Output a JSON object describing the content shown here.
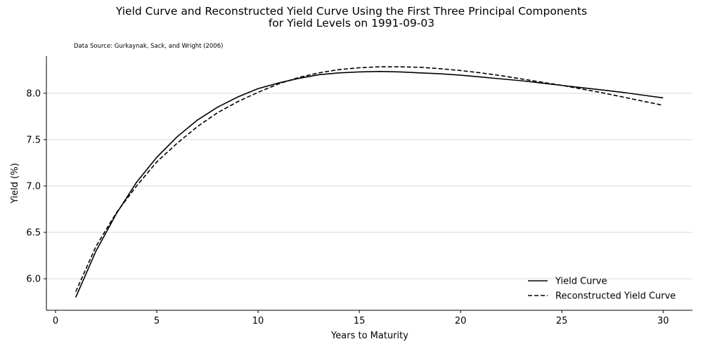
{
  "title_line1": "Yield Curve and Reconstructed Yield Curve Using the First Three Principal Components",
  "title_line2": "for Yield Levels on 1991-09-03",
  "source_note": "Data Source: Gurkaynak, Sack, and Wright (2006)",
  "chart_data": {
    "type": "line",
    "xlabel": "Years to Maturity",
    "ylabel": "Yield (%)",
    "xlim": [
      -0.45,
      31.45
    ],
    "ylim": [
      5.66,
      8.4
    ],
    "x_ticks": [
      "0",
      "5",
      "10",
      "15",
      "20",
      "25",
      "30"
    ],
    "y_ticks": [
      "6.0",
      "6.5",
      "7.0",
      "7.5",
      "8.0"
    ],
    "grid": "horizontal",
    "legend_position": "lower-right",
    "x": [
      1,
      2,
      3,
      4,
      5,
      6,
      7,
      8,
      9,
      10,
      11,
      12,
      13,
      14,
      15,
      16,
      17,
      18,
      19,
      20,
      21,
      22,
      23,
      24,
      25,
      26,
      27,
      28,
      29,
      30
    ],
    "series": [
      {
        "name": "Yield Curve",
        "style": "solid",
        "color": "#000000",
        "values": [
          5.8,
          6.3,
          6.7,
          7.04,
          7.31,
          7.53,
          7.71,
          7.85,
          7.96,
          8.05,
          8.11,
          8.16,
          8.2,
          8.22,
          8.23,
          8.235,
          8.23,
          8.22,
          8.21,
          8.195,
          8.175,
          8.155,
          8.135,
          8.11,
          8.085,
          8.06,
          8.035,
          8.01,
          7.98,
          7.95
        ]
      },
      {
        "name": "Reconstructed Yield Curve",
        "style": "dashed",
        "color": "#000000",
        "values": [
          5.86,
          6.35,
          6.71,
          7.0,
          7.26,
          7.46,
          7.64,
          7.79,
          7.91,
          8.01,
          8.1,
          8.17,
          8.22,
          8.255,
          8.275,
          8.285,
          8.285,
          8.28,
          8.265,
          8.245,
          8.22,
          8.19,
          8.155,
          8.12,
          8.085,
          8.045,
          8.005,
          7.96,
          7.915,
          7.87
        ]
      }
    ]
  }
}
